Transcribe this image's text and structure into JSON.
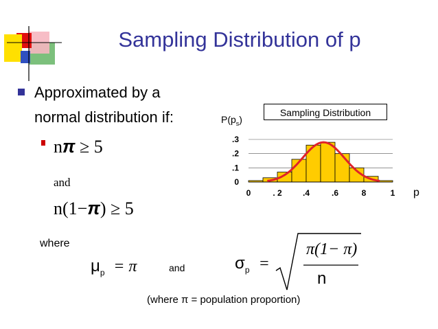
{
  "slide": {
    "title": "Sampling Distribution of p",
    "bullet1_line1": "Approximated by a",
    "bullet1_line2": "normal distribution if:",
    "cond1_pre": "n",
    "cond1_pi": "π",
    "cond1_post": " ≥ 5",
    "and_text": "and",
    "cond2_pre": "n(1−",
    "cond2_pi": "π",
    "cond2_post": ") ≥ 5",
    "where_label": "where",
    "mu_symbol": "μ",
    "mu_sub": "p",
    "mu_eq": "= π",
    "and_text2": "and",
    "sigma_symbol": "σ",
    "sigma_sub": "p",
    "sigma_eq": "=",
    "sigma_numerator": "π(1− π)",
    "sigma_denominator": "n",
    "footnote": "(where π = population proportion)"
  },
  "chart_data": {
    "type": "bar",
    "title": "Sampling Distribution",
    "ylabel_main": "P(",
    "ylabel_p": "p",
    "ylabel_sub": "s",
    "ylabel_close": ")",
    "xlabel": "p",
    "x_tick_labels": [
      "0",
      ". 2",
      ".4",
      ".6",
      "8",
      "1"
    ],
    "y_tick_labels": [
      ".3",
      ".2",
      ".1",
      "0"
    ],
    "ylim": [
      0,
      0.3
    ],
    "bin_width": 0.1,
    "bins": [
      0.05,
      0.15,
      0.25,
      0.35,
      0.45,
      0.55,
      0.65,
      0.75,
      0.85,
      0.95
    ],
    "values": [
      0.01,
      0.03,
      0.07,
      0.16,
      0.26,
      0.28,
      0.2,
      0.1,
      0.04,
      0.01
    ],
    "bar_color": "#ffcc00",
    "curve_color": "#e0222a",
    "grid": true
  },
  "colors": {
    "title": "#333399",
    "bullet": "#333399",
    "sub_bullet": "#cc0000"
  }
}
